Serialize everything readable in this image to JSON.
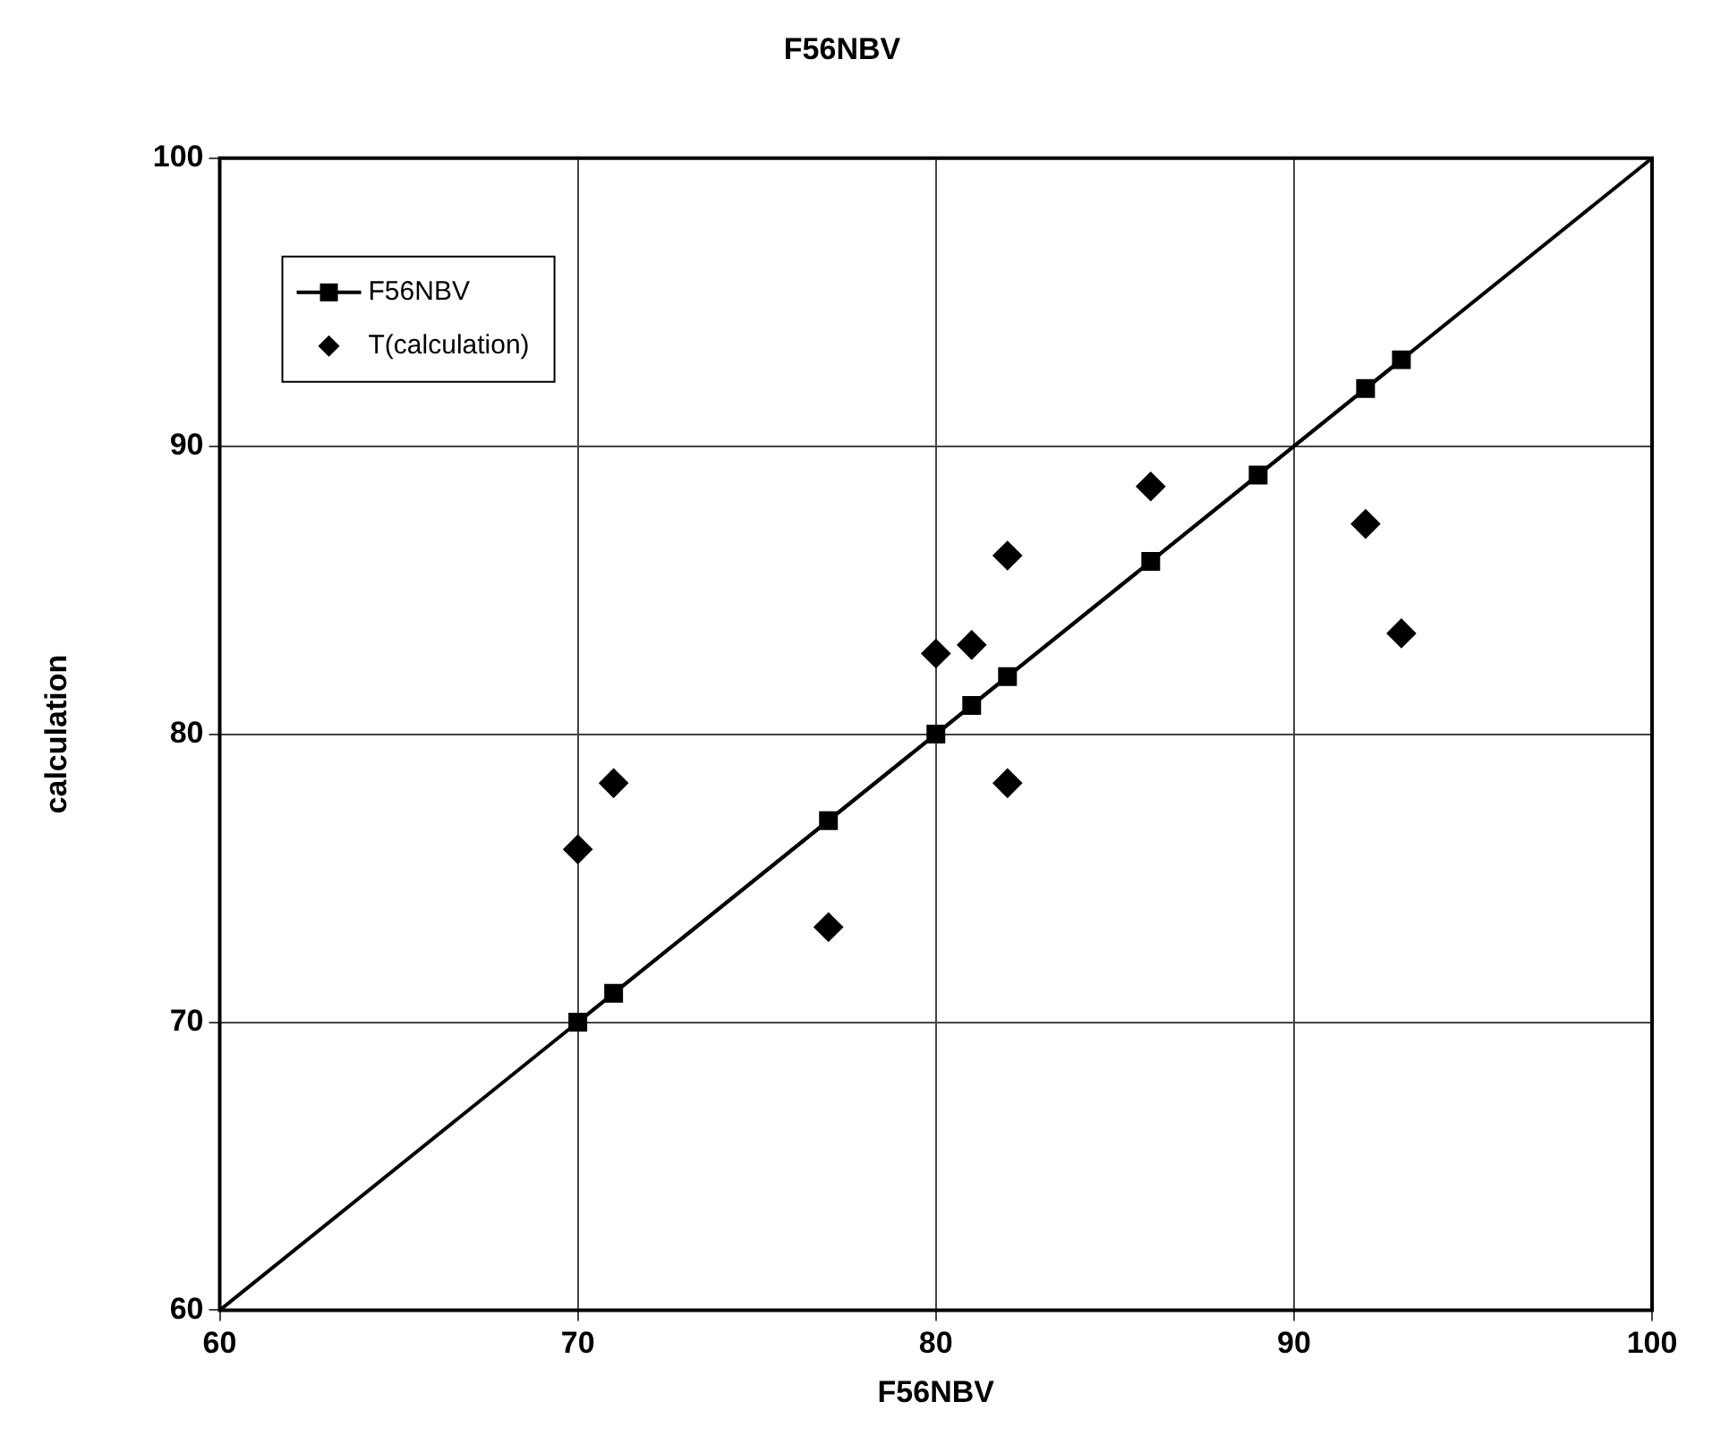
{
  "chart_data": {
    "type": "scatter",
    "title": "F56NBV",
    "xlabel": "F56NBV",
    "ylabel": "calculation",
    "xlim": [
      60,
      100
    ],
    "xticks": [
      60,
      70,
      80,
      90,
      100
    ],
    "ylim": [
      60,
      100
    ],
    "yticks": [
      60,
      70,
      80,
      90,
      100
    ],
    "grid": true,
    "legend": "top left",
    "series": [
      {
        "type": "line",
        "color": "#000000",
        "marker": "none",
        "x": [
          60,
          100
        ],
        "values": [
          60,
          100
        ]
      },
      {
        "type": "line",
        "name": "F56NBV",
        "color": "#000000",
        "marker": "square",
        "x": [
          70,
          71,
          77,
          80,
          81,
          82,
          86,
          89,
          92,
          93
        ],
        "values": [
          70,
          71,
          77,
          80,
          81,
          82,
          86,
          89,
          92,
          93
        ]
      },
      {
        "type": "scatter",
        "name": "T(calculation)",
        "color": "#000000",
        "marker": "diamond",
        "x": [
          70,
          71,
          77,
          80,
          81,
          82,
          82,
          86,
          92,
          93
        ],
        "values": [
          76,
          78.3,
          73.3,
          82.8,
          83.1,
          86.2,
          78.3,
          88.6,
          87.3,
          83.5
        ]
      }
    ]
  }
}
